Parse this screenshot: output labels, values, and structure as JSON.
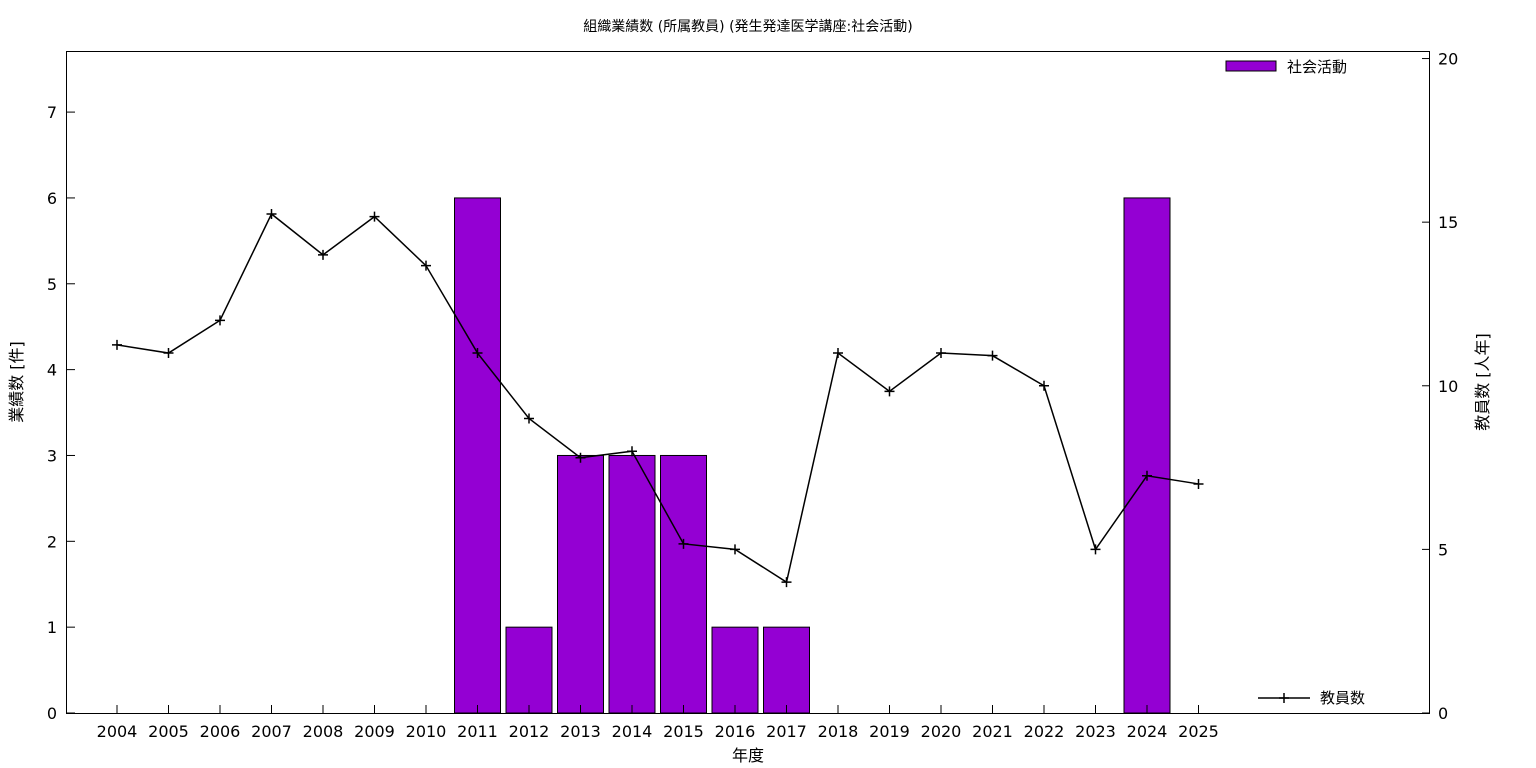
{
  "chart_data": {
    "type": "bar",
    "title": "組織業績数 (所属教員) (発生発達医学講座:社会活動)",
    "xlabel": "年度",
    "ylabel": "業績数 [件]",
    "y2label": "教員数 [人年]",
    "categories": [
      "2004",
      "2005",
      "2006",
      "2007",
      "2008",
      "2009",
      "2010",
      "2011",
      "2012",
      "2013",
      "2014",
      "2015",
      "2016",
      "2017",
      "2018",
      "2019",
      "2020",
      "2021",
      "2022",
      "2023",
      "2024",
      "2025"
    ],
    "ylim": [
      0,
      7.7
    ],
    "y2lim": [
      0,
      20.2
    ],
    "yticks": [
      0,
      1,
      2,
      3,
      4,
      5,
      6,
      7
    ],
    "y2ticks": [
      0,
      5,
      10,
      15,
      20
    ],
    "grid": false,
    "series": [
      {
        "name": "社会活動",
        "type": "bar",
        "axis": "left",
        "color": "#9400d3",
        "legend_position": "top-right",
        "values": [
          0,
          0,
          0,
          0,
          0,
          0,
          0,
          6,
          1,
          3,
          3,
          3,
          1,
          1,
          0,
          0,
          0,
          0,
          0,
          0,
          6,
          0
        ]
      },
      {
        "name": "教員数",
        "type": "line",
        "axis": "right",
        "color": "#000000",
        "marker": "plus",
        "legend_position": "bottom-right",
        "values": [
          11.25,
          11.0,
          12.0,
          15.25,
          14.0,
          15.17,
          13.67,
          11.0,
          9.0,
          7.8,
          8.0,
          5.17,
          5.0,
          4.0,
          11.0,
          9.83,
          11.0,
          10.92,
          10.0,
          5.0,
          7.25,
          7.0
        ]
      }
    ]
  }
}
